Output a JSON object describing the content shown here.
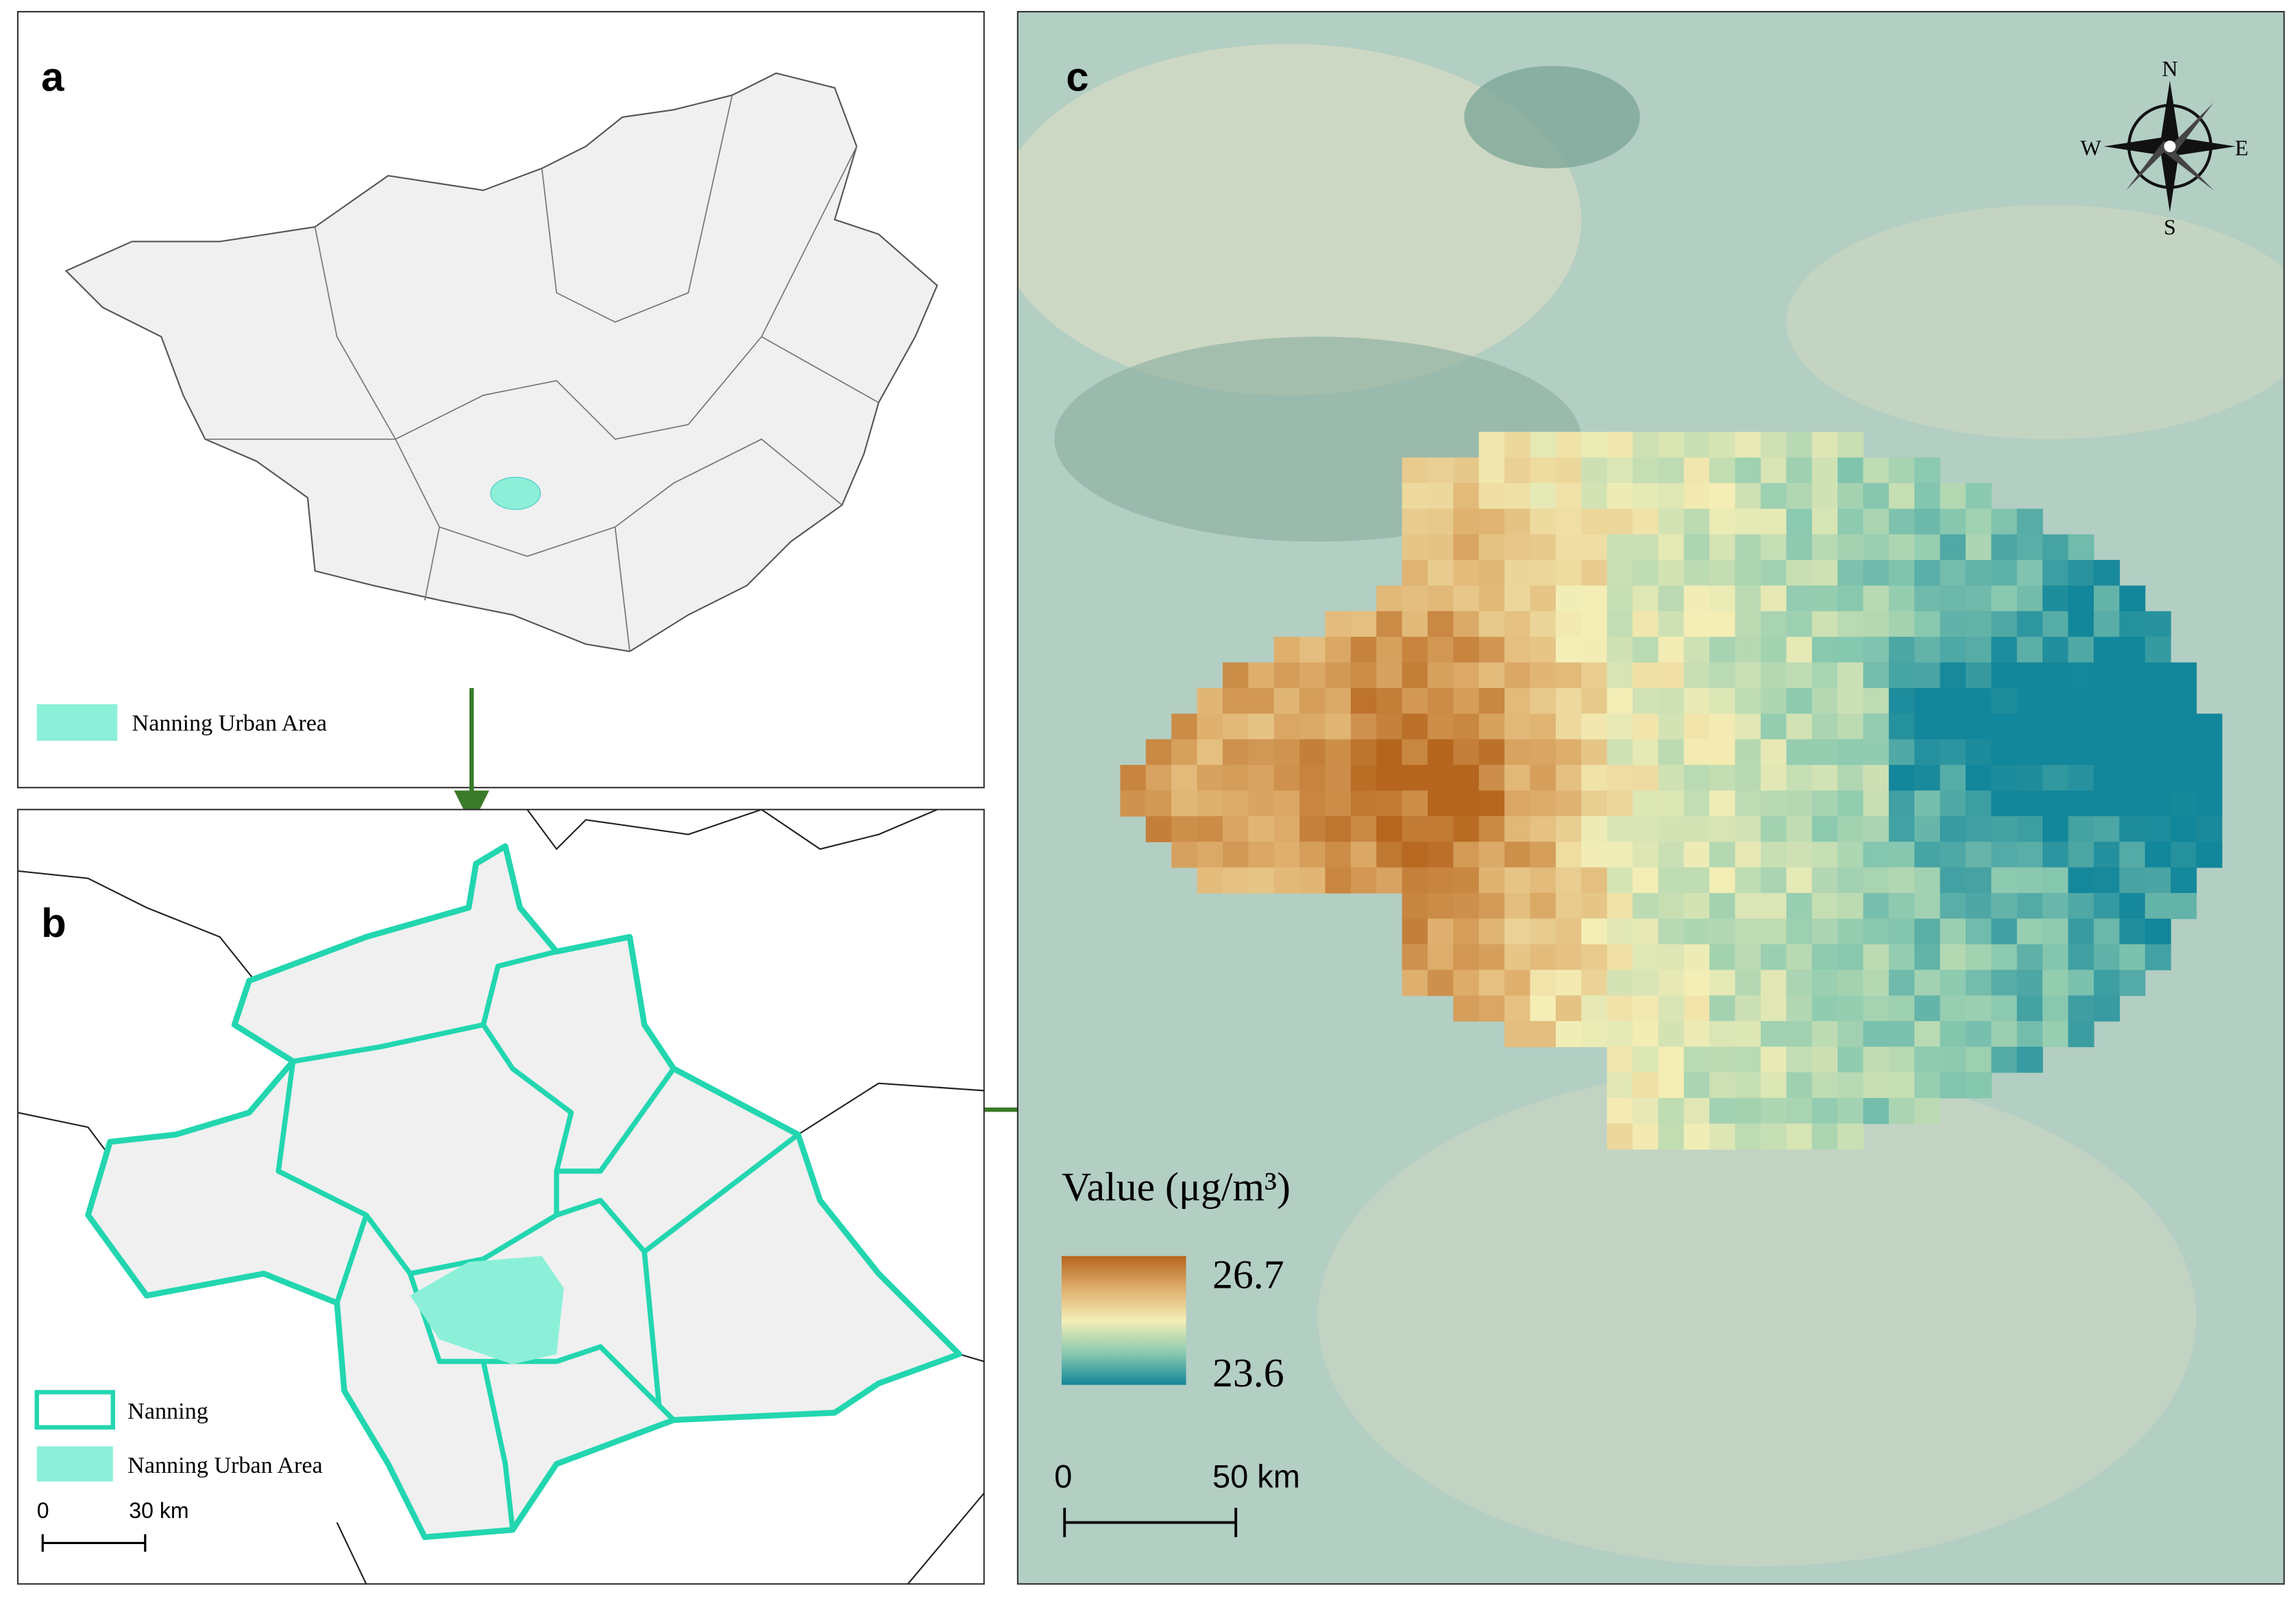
{
  "panels": {
    "a": {
      "label": "a",
      "legend": "Nanning Urban Area"
    },
    "b": {
      "label": "b",
      "legend": [
        "Nanning",
        "Nanning Urban Area"
      ],
      "scale": [
        "0",
        "30 km"
      ]
    },
    "c": {
      "label": "c",
      "compass": [
        "N",
        "E",
        "S",
        "W"
      ],
      "legend_title": "Value (μg/m³)",
      "legend_max": 26.7,
      "legend_min": 23.6,
      "scale": [
        "0",
        "50 km"
      ]
    }
  }
}
